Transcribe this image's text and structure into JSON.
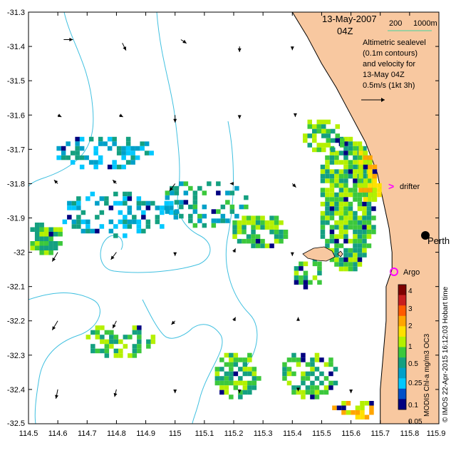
{
  "map": {
    "title_date": "13-May-2007",
    "title_time": "04Z",
    "bathy_legend": {
      "label_200": "200",
      "label_1000": "1000m",
      "color_200": "#00b0ff",
      "color_1000": "#80d0a0"
    },
    "info_lines": [
      "Altimetric sealevel",
      "(0.1m contours)",
      "and velocity for",
      "13-May 04Z",
      "0.5m/s (1kt 3h)"
    ],
    "labels": {
      "drifter": "drifter",
      "perth": "Perth",
      "argo": "Argo"
    },
    "credit": "© IMOS 22-Apr-2015 16:12:03 Hobart time",
    "colorbar_title": "MODIS Chl-a mg/m3 OC3",
    "colors": {
      "land": "#f8c8a0",
      "bathy": "#40c0e0",
      "drifter": "#ff00ff",
      "argo": "#ff00ff",
      "coast": "#000000"
    }
  },
  "axes": {
    "x_ticks": [
      "114.5",
      "114.6",
      "114.7",
      "114.8",
      "114.9",
      "115",
      "115.1",
      "115.2",
      "115.3",
      "115.4",
      "115.5",
      "115.6",
      "115.7",
      "115.8",
      "115.9"
    ],
    "y_ticks": [
      "-31.3",
      "-31.4",
      "-31.5",
      "-31.6",
      "-31.7",
      "-31.8",
      "-31.9",
      "-32",
      "-32.1",
      "-32.2",
      "-32.3",
      "-32.4",
      "-32.5"
    ]
  },
  "colorbar": {
    "ticks": [
      "4",
      "3",
      "2",
      "1",
      "0.5",
      "0.25",
      "0.1",
      "0.05"
    ],
    "colors": [
      "#7f0000",
      "#c81e1e",
      "#ff5a00",
      "#ffa500",
      "#ffe000",
      "#b4f000",
      "#3cc83c",
      "#14a080",
      "#00a0c8",
      "#00c8ff",
      "#0050c8",
      "#000080"
    ]
  },
  "chart_data": {
    "type": "map",
    "title": "13-May-2007 04Z",
    "xlim": [
      114.5,
      115.9
    ],
    "ylim": [
      -32.5,
      -31.3
    ],
    "xticks": [
      114.5,
      114.6,
      114.7,
      114.8,
      114.9,
      115,
      115.1,
      115.2,
      115.3,
      115.4,
      115.5,
      115.6,
      115.7,
      115.8,
      115.9
    ],
    "yticks": [
      -31.3,
      -31.4,
      -31.5,
      -31.6,
      -31.7,
      -31.8,
      -31.9,
      -32,
      -32.1,
      -32.2,
      -32.3,
      -32.4,
      -32.5
    ],
    "coastline": [
      [
        115.4,
        -31.3
      ],
      [
        115.45,
        -31.37
      ],
      [
        115.5,
        -31.45
      ],
      [
        115.55,
        -31.52
      ],
      [
        115.6,
        -31.6
      ],
      [
        115.65,
        -31.68
      ],
      [
        115.69,
        -31.77
      ],
      [
        115.71,
        -31.85
      ],
      [
        115.73,
        -31.93
      ],
      [
        115.74,
        -32.0
      ],
      [
        115.74,
        -32.05
      ],
      [
        115.72,
        -32.1
      ],
      [
        115.72,
        -32.2
      ],
      [
        115.71,
        -32.3
      ],
      [
        115.7,
        -32.4
      ],
      [
        115.7,
        -32.5
      ]
    ],
    "markers": [
      {
        "name": "drifter",
        "lon": 115.725,
        "lat": -31.805
      },
      {
        "name": "Perth",
        "lon": 115.86,
        "lat": -31.95
      },
      {
        "name": "Argo",
        "lon": 115.73,
        "lat": -32.075
      }
    ],
    "chl_clusters": [
      {
        "lon": 114.55,
        "lat": -31.95,
        "rx": 0.06,
        "ry": 0.05,
        "level": 6,
        "density": 0.9
      },
      {
        "lon": 114.75,
        "lat": -31.7,
        "rx": 0.17,
        "ry": 0.05,
        "level": 8,
        "density": 0.5
      },
      {
        "lon": 114.8,
        "lat": -31.88,
        "rx": 0.2,
        "ry": 0.07,
        "level": 8,
        "density": 0.45
      },
      {
        "lon": 115.1,
        "lat": -31.85,
        "rx": 0.15,
        "ry": 0.07,
        "level": 7,
        "density": 0.4
      },
      {
        "lon": 115.28,
        "lat": -31.93,
        "rx": 0.1,
        "ry": 0.05,
        "level": 6,
        "density": 0.7
      },
      {
        "lon": 115.58,
        "lat": -31.85,
        "rx": 0.1,
        "ry": 0.2,
        "level": 6,
        "density": 0.85
      },
      {
        "lon": 115.66,
        "lat": -31.75,
        "rx": 0.05,
        "ry": 0.1,
        "level": 4,
        "density": 0.8
      },
      {
        "lon": 115.5,
        "lat": -31.65,
        "rx": 0.08,
        "ry": 0.05,
        "level": 6,
        "density": 0.6
      },
      {
        "lon": 114.8,
        "lat": -32.25,
        "rx": 0.12,
        "ry": 0.05,
        "level": 6,
        "density": 0.55
      },
      {
        "lon": 115.2,
        "lat": -32.35,
        "rx": 0.08,
        "ry": 0.07,
        "level": 6,
        "density": 0.75
      },
      {
        "lon": 115.45,
        "lat": -32.35,
        "rx": 0.1,
        "ry": 0.07,
        "level": 6,
        "density": 0.6
      },
      {
        "lon": 115.6,
        "lat": -32.45,
        "rx": 0.08,
        "ry": 0.03,
        "level": 4,
        "density": 0.6
      },
      {
        "lon": 115.45,
        "lat": -32.05,
        "rx": 0.06,
        "ry": 0.05,
        "level": 6,
        "density": 0.6
      }
    ],
    "velocity_arrows": [
      {
        "lon": 114.62,
        "lat": -31.38,
        "u": 0.05,
        "v": 0.0
      },
      {
        "lon": 114.82,
        "lat": -31.39,
        "u": 0.02,
        "v": -0.04
      },
      {
        "lon": 115.02,
        "lat": -31.38,
        "u": 0.03,
        "v": -0.02
      },
      {
        "lon": 115.22,
        "lat": -31.4,
        "u": 0.0,
        "v": -0.03
      },
      {
        "lon": 115.4,
        "lat": -31.4,
        "u": 0.0,
        "v": -0.02
      },
      {
        "lon": 114.6,
        "lat": -31.6,
        "u": 0.02,
        "v": -0.01
      },
      {
        "lon": 114.81,
        "lat": -31.6,
        "u": 0.02,
        "v": -0.01
      },
      {
        "lon": 115.0,
        "lat": -31.6,
        "u": 0.0,
        "v": -0.04
      },
      {
        "lon": 115.22,
        "lat": -31.6,
        "u": 0.0,
        "v": -0.02
      },
      {
        "lon": 115.41,
        "lat": -31.6,
        "u": 0.0,
        "v": -0.01
      },
      {
        "lon": 114.6,
        "lat": -31.8,
        "u": -0.02,
        "v": 0.02
      },
      {
        "lon": 114.8,
        "lat": -31.8,
        "u": -0.02,
        "v": 0.02
      },
      {
        "lon": 115.0,
        "lat": -31.8,
        "u": -0.03,
        "v": -0.04
      },
      {
        "lon": 115.2,
        "lat": -31.8,
        "u": -0.02,
        "v": 0.0
      },
      {
        "lon": 115.4,
        "lat": -31.8,
        "u": 0.02,
        "v": -0.02
      },
      {
        "lon": 114.6,
        "lat": -32.0,
        "u": -0.03,
        "v": -0.05
      },
      {
        "lon": 114.8,
        "lat": -32.0,
        "u": -0.03,
        "v": -0.04
      },
      {
        "lon": 115.0,
        "lat": -32.0,
        "u": 0.0,
        "v": -0.02
      },
      {
        "lon": 115.2,
        "lat": -32.0,
        "u": 0.01,
        "v": 0.02
      },
      {
        "lon": 115.4,
        "lat": -32.0,
        "u": 0.0,
        "v": -0.02
      },
      {
        "lon": 114.6,
        "lat": -32.2,
        "u": -0.03,
        "v": -0.05
      },
      {
        "lon": 114.8,
        "lat": -32.2,
        "u": -0.02,
        "v": -0.04
      },
      {
        "lon": 115.0,
        "lat": -32.2,
        "u": -0.02,
        "v": -0.02
      },
      {
        "lon": 115.2,
        "lat": -32.2,
        "u": 0.01,
        "v": 0.02
      },
      {
        "lon": 115.42,
        "lat": -32.2,
        "u": 0.0,
        "v": 0.02
      },
      {
        "lon": 114.6,
        "lat": -32.4,
        "u": -0.01,
        "v": -0.05
      },
      {
        "lon": 114.8,
        "lat": -32.4,
        "u": -0.01,
        "v": -0.04
      },
      {
        "lon": 115.0,
        "lat": -32.4,
        "u": 0.0,
        "v": -0.02
      },
      {
        "lon": 115.22,
        "lat": -32.4,
        "u": 0.0,
        "v": -0.02
      },
      {
        "lon": 115.42,
        "lat": -32.4,
        "u": 0.0,
        "v": -0.01
      },
      {
        "lon": 115.6,
        "lat": -32.4,
        "u": 0.0,
        "v": -0.02
      }
    ]
  }
}
